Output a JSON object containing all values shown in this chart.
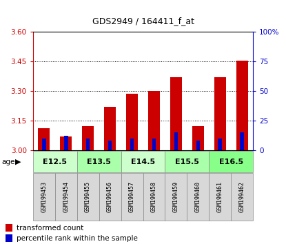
{
  "title": "GDS2949 / 164411_f_at",
  "samples": [
    "GSM199453",
    "GSM199454",
    "GSM199455",
    "GSM199456",
    "GSM199457",
    "GSM199458",
    "GSM199459",
    "GSM199460",
    "GSM199461",
    "GSM199462"
  ],
  "age_groups": [
    {
      "label": "E12.5",
      "span": [
        0,
        2
      ]
    },
    {
      "label": "E13.5",
      "span": [
        2,
        4
      ]
    },
    {
      "label": "E14.5",
      "span": [
        4,
        6
      ]
    },
    {
      "label": "E15.5",
      "span": [
        6,
        8
      ]
    },
    {
      "label": "E16.5",
      "span": [
        8,
        10
      ]
    }
  ],
  "transformed_count": [
    3.11,
    3.07,
    3.12,
    3.22,
    3.285,
    3.3,
    3.37,
    3.12,
    3.37,
    3.455
  ],
  "percentile_rank": [
    10,
    12,
    10,
    8,
    10,
    10,
    15,
    8,
    10,
    15
  ],
  "bar_base": 3.0,
  "ylim_left": [
    3.0,
    3.6
  ],
  "yticks_left": [
    3.0,
    3.15,
    3.3,
    3.45,
    3.6
  ],
  "ylim_right": [
    0,
    100
  ],
  "yticks_right": [
    0,
    25,
    50,
    75,
    100
  ],
  "red_color": "#cc0000",
  "blue_color": "#0000cc",
  "legend_red": "transformed count",
  "legend_blue": "percentile rank within the sample",
  "age_colors": [
    "#ccffcc",
    "#aaffaa",
    "#ccffcc",
    "#aaffaa",
    "#88ff88"
  ],
  "bar_width": 0.55,
  "blue_bar_width": 0.18
}
